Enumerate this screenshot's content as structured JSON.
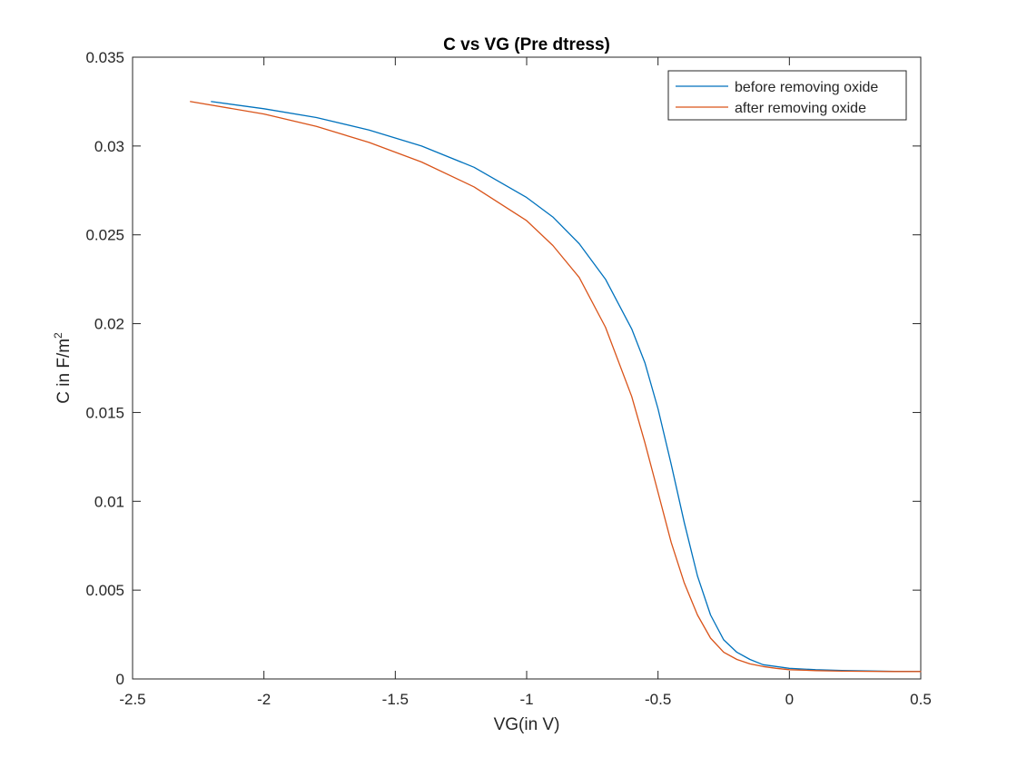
{
  "chart_data": {
    "type": "line",
    "title": "C vs VG (Pre dtress)",
    "xlabel": "VG(in V)",
    "ylabel_main": "C in F/m",
    "ylabel_sup": "2",
    "xlim": [
      -2.5,
      0.5
    ],
    "ylim": [
      0,
      0.035
    ],
    "xticks": [
      -2.5,
      -2,
      -1.5,
      -1,
      -0.5,
      0,
      0.5
    ],
    "xtick_labels": [
      "-2.5",
      "-2",
      "-1.5",
      "-1",
      "-0.5",
      "0",
      "0.5"
    ],
    "yticks": [
      0,
      0.005,
      0.01,
      0.015,
      0.02,
      0.025,
      0.03,
      0.035
    ],
    "ytick_labels": [
      "0",
      "0.005",
      "0.01",
      "0.015",
      "0.02",
      "0.025",
      "0.03",
      "0.035"
    ],
    "grid": false,
    "legend_position": "top-right",
    "series": [
      {
        "name": "before removing oxide",
        "color": "#0072BD",
        "x": [
          -2.2,
          -2.0,
          -1.8,
          -1.6,
          -1.4,
          -1.2,
          -1.0,
          -0.9,
          -0.8,
          -0.7,
          -0.6,
          -0.55,
          -0.5,
          -0.45,
          -0.4,
          -0.35,
          -0.3,
          -0.25,
          -0.2,
          -0.15,
          -0.1,
          -0.05,
          0.0,
          0.1,
          0.2,
          0.3,
          0.4,
          0.5
        ],
        "y": [
          0.0325,
          0.0321,
          0.0316,
          0.0309,
          0.03,
          0.0288,
          0.0271,
          0.026,
          0.0245,
          0.0225,
          0.0197,
          0.0178,
          0.0152,
          0.0121,
          0.0088,
          0.0058,
          0.0036,
          0.0022,
          0.0015,
          0.0011,
          0.0008,
          0.0007,
          0.0006,
          0.00052,
          0.00048,
          0.00045,
          0.00043,
          0.00042
        ]
      },
      {
        "name": "after removing oxide",
        "color": "#D95319",
        "x": [
          -2.28,
          -2.0,
          -1.8,
          -1.6,
          -1.4,
          -1.2,
          -1.0,
          -0.9,
          -0.8,
          -0.7,
          -0.6,
          -0.55,
          -0.5,
          -0.45,
          -0.4,
          -0.35,
          -0.3,
          -0.25,
          -0.2,
          -0.15,
          -0.1,
          -0.05,
          0.0,
          0.1,
          0.2,
          0.3,
          0.4,
          0.5
        ],
        "y": [
          0.0325,
          0.0318,
          0.0311,
          0.0302,
          0.0291,
          0.0277,
          0.0258,
          0.0244,
          0.0226,
          0.0198,
          0.0159,
          0.0133,
          0.0105,
          0.0077,
          0.0054,
          0.0036,
          0.0023,
          0.0015,
          0.0011,
          0.00085,
          0.0007,
          0.0006,
          0.00052,
          0.00047,
          0.00044,
          0.00043,
          0.00042,
          0.00042
        ]
      }
    ]
  }
}
